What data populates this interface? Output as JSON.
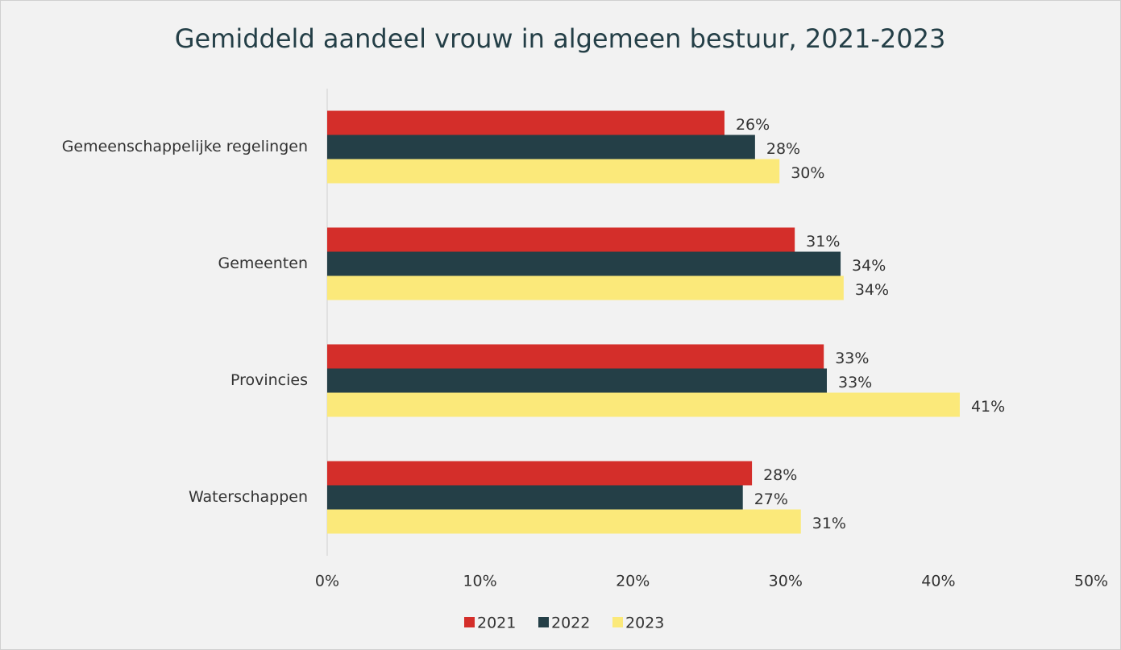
{
  "chart_data": {
    "type": "hbar",
    "title": "Gemiddeld aandeel vrouw in algemeen bestuur, 2021-2023",
    "categories": [
      "Gemeenschappelijke regelingen",
      "Gemeenten",
      "Provincies",
      "Waterschappen"
    ],
    "series": [
      {
        "name": "2021",
        "color": "#d42e2a",
        "values": [
          26.0,
          30.6,
          32.5,
          27.8
        ],
        "value_labels": [
          "26%",
          "31%",
          "33%",
          "28%"
        ]
      },
      {
        "name": "2022",
        "color": "#243f47",
        "values": [
          28.0,
          33.6,
          32.7,
          27.2
        ],
        "value_labels": [
          "28%",
          "34%",
          "33%",
          "27%"
        ]
      },
      {
        "name": "2023",
        "color": "#fbe97a",
        "values": [
          29.6,
          33.8,
          41.4,
          31.0
        ],
        "value_labels": [
          "30%",
          "34%",
          "41%",
          "31%"
        ]
      }
    ],
    "xlim": [
      0,
      50
    ],
    "xticks": [
      {
        "value": 0,
        "label": "0%"
      },
      {
        "value": 10,
        "label": "10%"
      },
      {
        "value": 20,
        "label": "20%"
      },
      {
        "value": 30,
        "label": "30%"
      },
      {
        "value": 40,
        "label": "40%"
      },
      {
        "value": 50,
        "label": "50%"
      }
    ],
    "legend": "bottom"
  }
}
